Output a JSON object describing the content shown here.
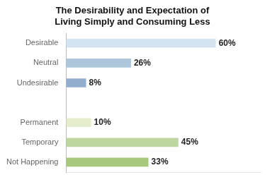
{
  "chart_data": {
    "type": "bar",
    "orientation": "horizontal",
    "title": "The Desirability and Expectation of\nLiving Simply and Consuming Less",
    "categories": [
      "Desirable",
      "Neutral",
      "Undesirable",
      null,
      "Permanent",
      "Temporary",
      "Not Happening"
    ],
    "values": [
      60,
      26,
      8,
      0,
      10,
      45,
      33
    ],
    "value_labels": [
      "60%",
      "26%",
      "8%",
      null,
      "10%",
      "45%",
      "33%"
    ],
    "colors": [
      "#d4e4f0",
      "#aec6dc",
      "#92aece",
      "#ffffff",
      "#e4edcc",
      "#bdd6a0",
      "#a8c87e"
    ],
    "xlim": [
      0,
      78
    ],
    "data_labels": true,
    "tick_labels": "y",
    "grid": false
  }
}
